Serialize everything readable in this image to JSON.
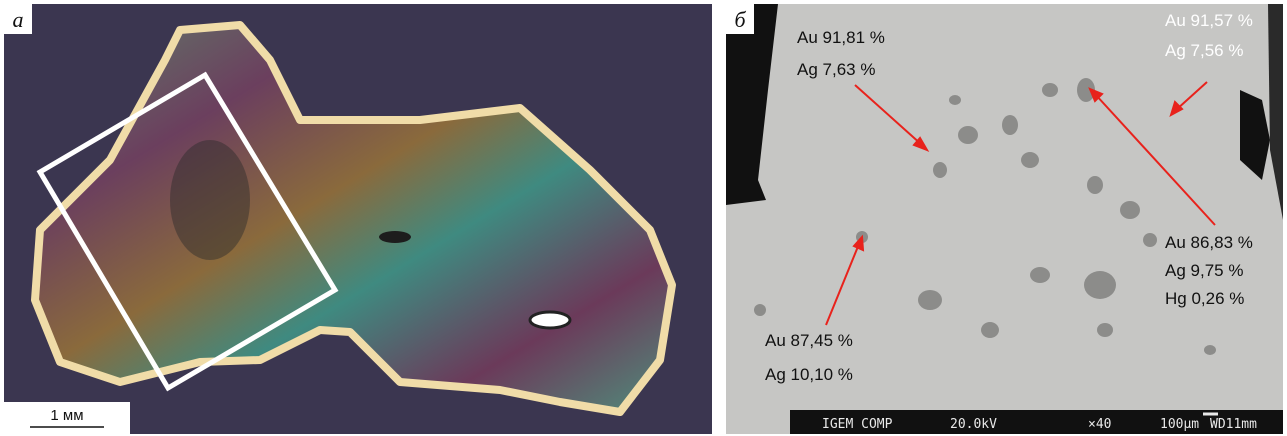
{
  "panel_a": {
    "label": "а",
    "scale_bar": "1 мм"
  },
  "panel_b": {
    "label": "б",
    "annotations": [
      {
        "lines": [
          "Au 91,81 %",
          "Ag 7,63 %"
        ]
      },
      {
        "lines": [
          "Au 91,57 %",
          "Ag 7,56 %"
        ]
      },
      {
        "lines": [
          "Au 86,83 %",
          "Ag 9,75 %",
          "Hg 0,26 %"
        ]
      },
      {
        "lines": [
          "Au 87,45 %",
          "Ag 10,10 %"
        ]
      }
    ],
    "info_bar": [
      "IGEM COMP",
      "20.0kV",
      "×40",
      "100μm",
      "WD11mm"
    ]
  }
}
